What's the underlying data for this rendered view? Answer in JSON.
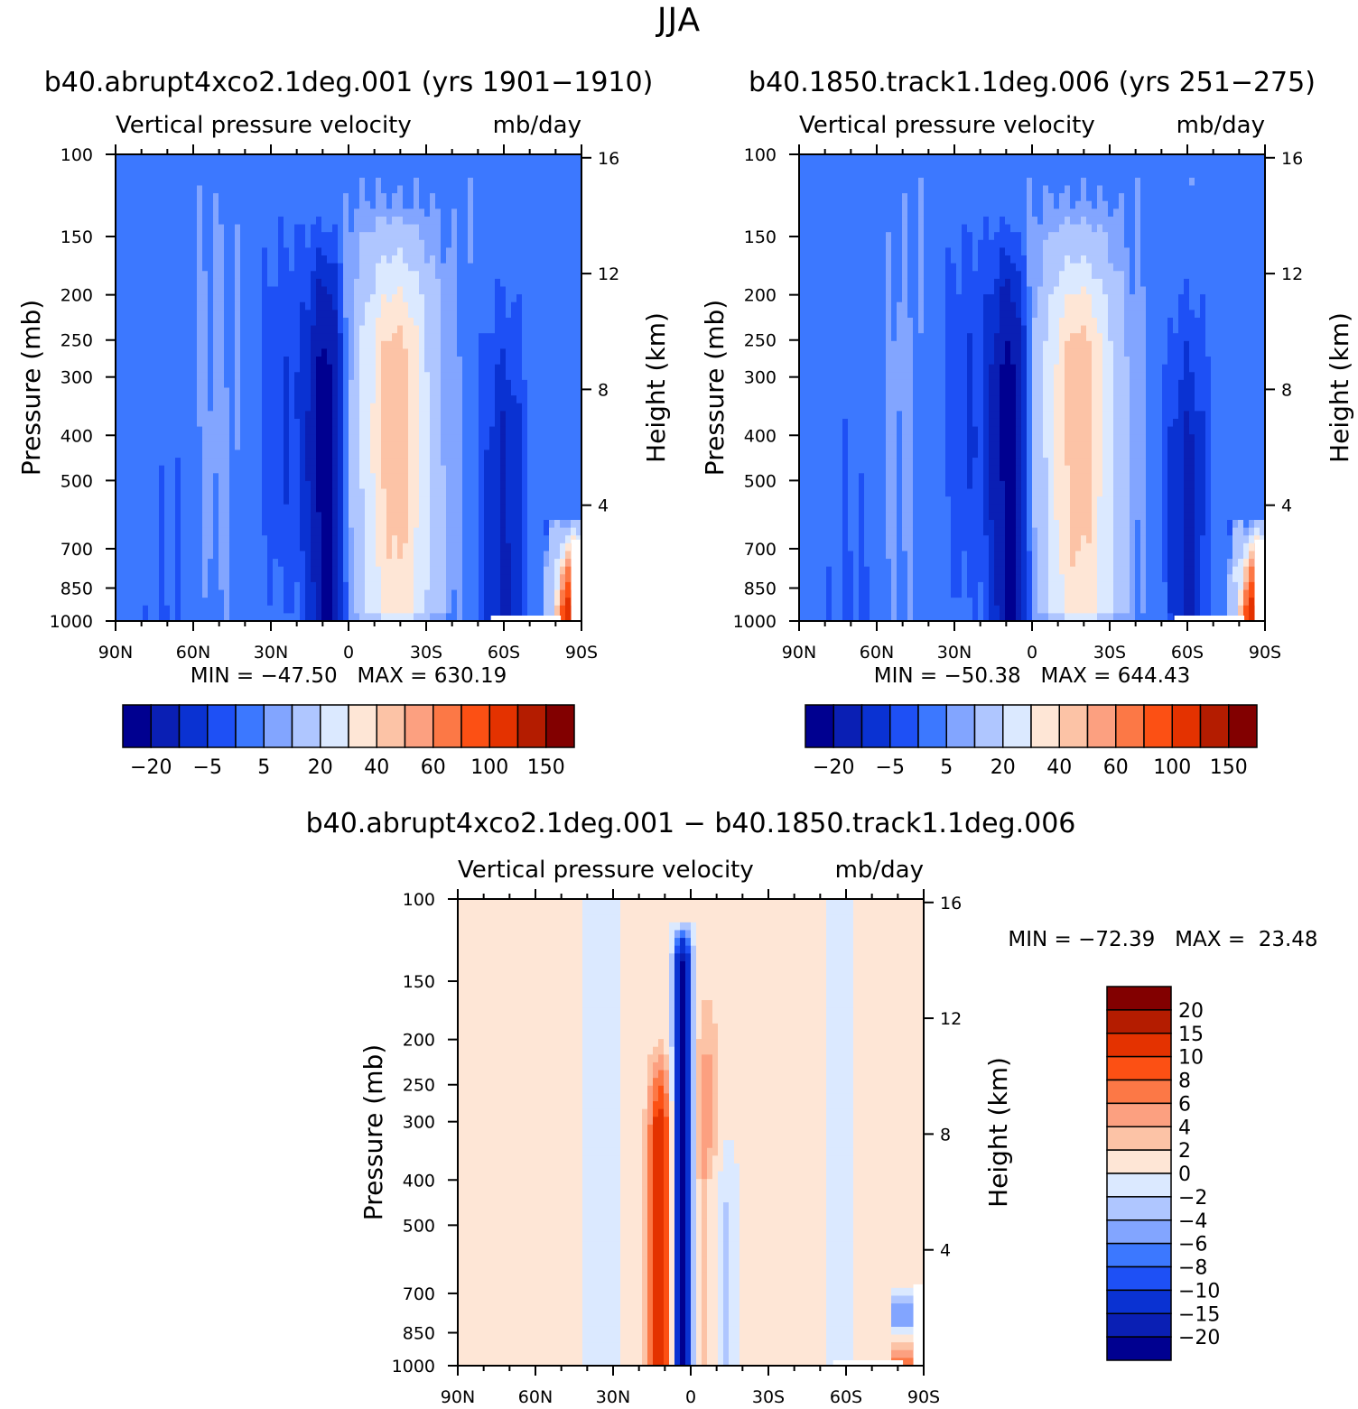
{
  "figure": {
    "title": "JJA"
  },
  "colors": {
    "full_levels": [
      "#000090",
      "#0a1fb4",
      "#0a32d2",
      "#1e50f5",
      "#3c78ff",
      "#82a5ff",
      "#afc6ff",
      "#dbe9ff",
      "#fee6d6",
      "#fcc3a6",
      "#fca080",
      "#fc7846",
      "#fc5014",
      "#e43200",
      "#b41c00",
      "#820000"
    ],
    "diff_levels": [
      "#000090",
      "#0a1fb4",
      "#0a32d2",
      "#1e50f5",
      "#3c78ff",
      "#82a5ff",
      "#afc6ff",
      "#dbe9ff",
      "#fee6d6",
      "#fcc3a6",
      "#fca080",
      "#fc7846",
      "#fc5014",
      "#e43200",
      "#b41c00",
      "#820000"
    ]
  },
  "chart_data": [
    {
      "type": "heatmap",
      "title": "b40.abrupt4xco2.1deg.001 (yrs 1901−1910)",
      "subtitle_left": "Vertical pressure velocity",
      "subtitle_right": "mb/day",
      "ylabel": "Pressure (mb)",
      "ylabel_right": "Height (km)",
      "x_ticks": [
        "90N",
        "60N",
        "30N",
        "0",
        "30S",
        "60S",
        "90S"
      ],
      "y_ticks": [
        "100",
        "150",
        "200",
        "250",
        "300",
        "400",
        "500",
        "700",
        "850",
        "1000"
      ],
      "y_ticks_right": [
        "16",
        "12",
        "8",
        "4"
      ],
      "xlim": [
        90,
        -90
      ],
      "ylim": [
        1000,
        100
      ],
      "y_scale": "log",
      "stats": "MIN = −47.50   MAX = 630.19",
      "colorbar_labels": [
        "−20",
        "−5",
        "5",
        "20",
        "40",
        "60",
        "100",
        "150"
      ]
    },
    {
      "type": "heatmap",
      "title": "b40.1850.track1.1deg.006 (yrs 251−275)",
      "subtitle_left": "Vertical pressure velocity",
      "subtitle_right": "mb/day",
      "ylabel": "Pressure (mb)",
      "ylabel_right": "Height (km)",
      "x_ticks": [
        "90N",
        "60N",
        "30N",
        "0",
        "30S",
        "60S",
        "90S"
      ],
      "y_ticks": [
        "100",
        "150",
        "200",
        "250",
        "300",
        "400",
        "500",
        "700",
        "850",
        "1000"
      ],
      "y_ticks_right": [
        "16",
        "12",
        "8",
        "4"
      ],
      "xlim": [
        90,
        -90
      ],
      "ylim": [
        1000,
        100
      ],
      "y_scale": "log",
      "stats": "MIN = −50.38   MAX = 644.43",
      "colorbar_labels": [
        "−20",
        "−5",
        "5",
        "20",
        "40",
        "60",
        "100",
        "150"
      ]
    },
    {
      "type": "heatmap",
      "title": "b40.abrupt4xco2.1deg.001 − b40.1850.track1.1deg.006",
      "subtitle_left": "Vertical pressure velocity",
      "subtitle_right": "mb/day",
      "ylabel": "Pressure (mb)",
      "ylabel_right": "Height (km)",
      "x_ticks": [
        "90N",
        "60N",
        "30N",
        "0",
        "30S",
        "60S",
        "90S"
      ],
      "y_ticks": [
        "100",
        "150",
        "200",
        "250",
        "300",
        "400",
        "500",
        "700",
        "850",
        "1000"
      ],
      "y_ticks_right": [
        "16",
        "12",
        "8",
        "4"
      ],
      "xlim": [
        90,
        -90
      ],
      "ylim": [
        1000,
        100
      ],
      "y_scale": "log",
      "stats": "MIN = −72.39   MAX =  23.48",
      "colorbar_labels": [
        "20",
        "15",
        "10",
        "8",
        "6",
        "4",
        "2",
        "0",
        "−2",
        "−4",
        "−6",
        "−8",
        "−10",
        "−15",
        "−20"
      ]
    }
  ]
}
